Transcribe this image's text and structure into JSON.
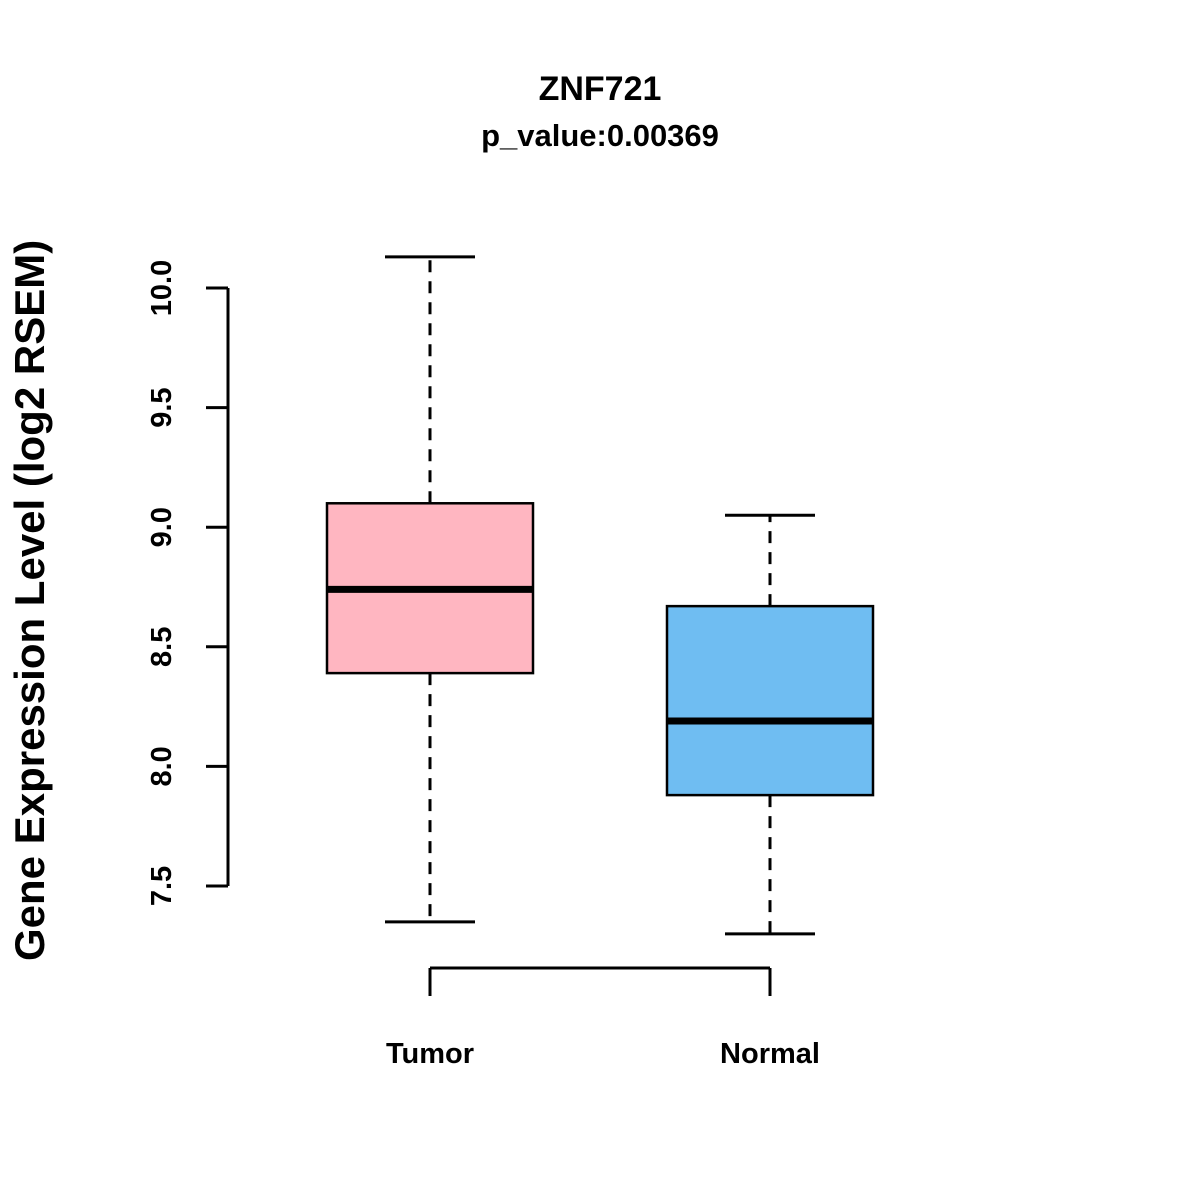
{
  "chart_data": {
    "type": "boxplot",
    "title": "ZNF721",
    "subtitle": "p_value:0.00369",
    "ylabel": "Gene Expression Level (log2 RSEM)",
    "xlabel": "",
    "categories": [
      "Tumor",
      "Normal"
    ],
    "yticks": [
      7.5,
      8.0,
      8.5,
      9.0,
      9.5,
      10.0
    ],
    "ylim": [
      7.2,
      10.2
    ],
    "grid": false,
    "legend": "none",
    "series": [
      {
        "name": "Tumor",
        "color": "#FFB6C1",
        "lower_whisker": 7.35,
        "q1": 8.39,
        "median": 8.74,
        "q3": 9.1,
        "upper_whisker": 10.13
      },
      {
        "name": "Normal",
        "color": "#6FBDF2",
        "lower_whisker": 7.3,
        "q1": 7.88,
        "median": 8.19,
        "q3": 8.67,
        "upper_whisker": 9.05
      }
    ]
  }
}
